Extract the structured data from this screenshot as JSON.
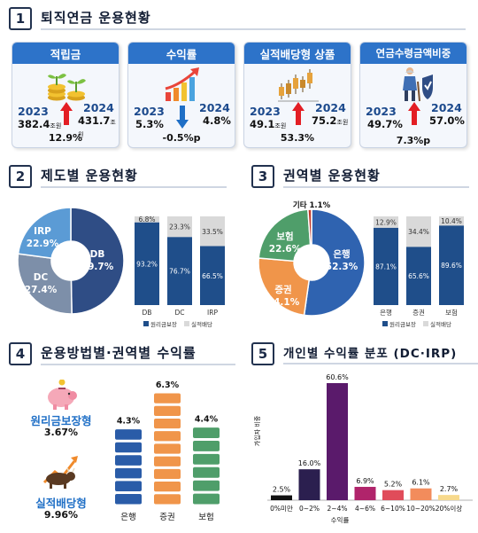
{
  "sections": {
    "s1": {
      "num": "1",
      "title": "퇴직연금 운용현황"
    },
    "s2": {
      "num": "2",
      "title": "제도별 운용현황"
    },
    "s3": {
      "num": "3",
      "title": "권역별 운용현황"
    },
    "s4": {
      "num": "4",
      "title": "운용방법별·권역별 수익률"
    },
    "s5": {
      "num": "5",
      "title": "개인별 수익률 분포 (DC·IRP)"
    }
  },
  "cards": [
    {
      "title": "적립금",
      "y1": "2023",
      "y2": "2024",
      "v1": "382.4",
      "v2": "431.7",
      "unit": "조원",
      "change": "12.9%",
      "direction": "up",
      "icon": "coins-plant-icon"
    },
    {
      "title": "수익률",
      "y1": "2023",
      "y2": "2024",
      "v1": "5.3%",
      "v2": "4.8%",
      "unit": "",
      "change": "-0.5%p",
      "direction": "down",
      "icon": "growth-chart-icon"
    },
    {
      "title": "실적배당형 상품",
      "y1": "2023",
      "y2": "2024",
      "v1": "49.1",
      "v2": "75.2",
      "unit": "조원",
      "change": "53.3%",
      "direction": "up",
      "icon": "candlestick-icon"
    },
    {
      "title": "연금수령금액비중",
      "y1": "2023",
      "y2": "2024",
      "v1": "49.7%",
      "v2": "57.0%",
      "unit": "",
      "change": "7.3%p",
      "direction": "up",
      "icon": "elderly-shield-icon"
    }
  ],
  "colors": {
    "accent": "#2d73c9",
    "navy": "#1f4e8a",
    "up": "#e31e24",
    "down": "#1f6fc6",
    "light": "#d9d9d9",
    "orange": "#f0954a",
    "green": "#4f9e6a"
  },
  "chart_data": [
    {
      "type": "pie",
      "id": "system-donut",
      "categories": [
        "DB",
        "DC",
        "IRP"
      ],
      "values": [
        49.7,
        27.4,
        22.9
      ],
      "labels": [
        "49.7%",
        "27.4%",
        "22.9%"
      ],
      "colors": [
        "#2f4d85",
        "#7d8fa9",
        "#5b9bd5"
      ]
    },
    {
      "type": "bar",
      "id": "system-stacked",
      "categories": [
        "DB",
        "DC",
        "IRP"
      ],
      "series": [
        {
          "name": "원리금보장",
          "values": [
            93.2,
            76.7,
            66.5
          ],
          "labels": [
            "93.2%",
            "76.7%",
            "66.5%"
          ]
        },
        {
          "name": "실적배당",
          "values": [
            6.8,
            23.3,
            33.5
          ],
          "labels": [
            "6.8%",
            "23.3%",
            "33.5%"
          ]
        }
      ],
      "legend": "bottom"
    },
    {
      "type": "pie",
      "id": "sector-donut",
      "categories": [
        "은행",
        "증권",
        "보험",
        "기타"
      ],
      "values": [
        52.3,
        24.1,
        22.6,
        1.1
      ],
      "labels": [
        "52.3%",
        "24.1%",
        "22.6%",
        "1.1%"
      ],
      "other_label": "기타 1.1%",
      "colors": [
        "#2f63b0",
        "#f0954a",
        "#4f9e6a",
        "#c0392b"
      ]
    },
    {
      "type": "bar",
      "id": "sector-stacked",
      "categories": [
        "은행",
        "증권",
        "보험"
      ],
      "series": [
        {
          "name": "원리금보장",
          "values": [
            87.1,
            65.6,
            89.6
          ],
          "labels": [
            "87.1%",
            "65.6%",
            "89.6%"
          ]
        },
        {
          "name": "실적배당",
          "values": [
            12.9,
            34.4,
            10.4
          ],
          "labels": [
            "12.9%",
            "34.4%",
            "10.4%"
          ]
        }
      ],
      "legend": "bottom"
    },
    {
      "type": "bar",
      "id": "method-returns",
      "methods": [
        {
          "name": "원리금보장형",
          "value": "3.67%",
          "icon": "piggy-bank-icon"
        },
        {
          "name": "실적배당형",
          "value": "9.96%",
          "icon": "bull-icon"
        }
      ],
      "categories": [
        "은행",
        "증권",
        "보험"
      ],
      "values": [
        4.3,
        6.3,
        4.4
      ],
      "labels": [
        "4.3%",
        "6.3%",
        "4.4%"
      ],
      "colors": [
        "#2a5ca8",
        "#f0954a",
        "#4f9e6a"
      ]
    },
    {
      "type": "bar",
      "id": "individual-distribution",
      "categories": [
        "0%미만",
        "0~2%",
        "2~4%",
        "4~6%",
        "6~10%",
        "10~20%",
        "20%이상"
      ],
      "values": [
        2.5,
        16.0,
        60.6,
        6.9,
        5.2,
        6.1,
        2.7
      ],
      "labels": [
        "2.5%",
        "16.0%",
        "60.6%",
        "6.9%",
        "5.2%",
        "6.1%",
        "2.7%"
      ],
      "colors": [
        "#111111",
        "#2b1f4f",
        "#5a1a6b",
        "#b0246b",
        "#e04c5a",
        "#f28c5c",
        "#f7d98c"
      ],
      "xlabel": "수익률",
      "ylabel": "가입자 비중"
    }
  ]
}
